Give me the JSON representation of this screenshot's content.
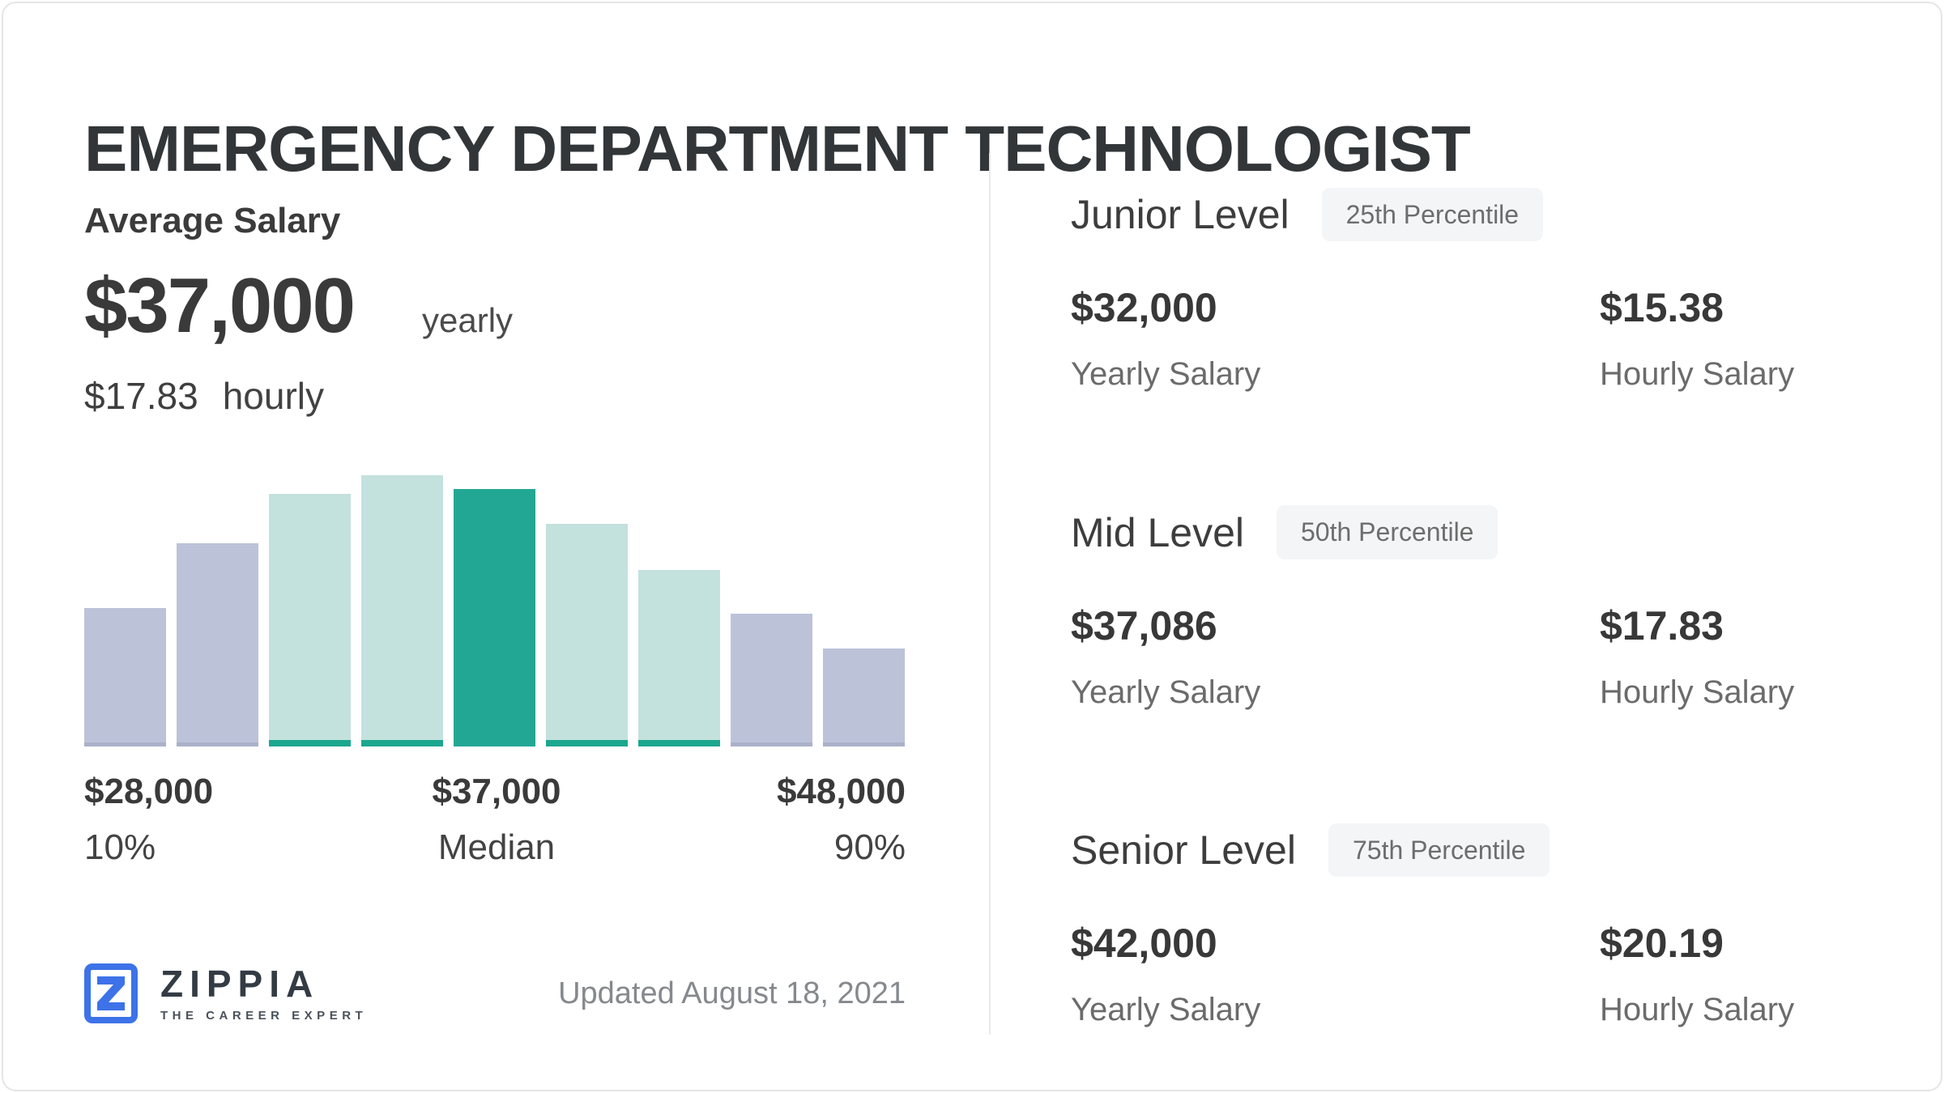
{
  "page": {
    "title": "EMERGENCY DEPARTMENT TECHNOLOGIST",
    "updated": "Updated August 18, 2021"
  },
  "average": {
    "label": "Average Salary",
    "yearly_value": "$37,000",
    "yearly_unit": "yearly",
    "hourly_value": "$17.83",
    "hourly_unit": "hourly"
  },
  "chart_data": {
    "type": "bar",
    "title": "Salary distribution histogram",
    "x_range": {
      "low_value": "$28,000",
      "low_percentile": "10%",
      "median_value": "$37,000",
      "high_value": "$48,000",
      "high_percentile": "90%"
    },
    "ylabel": "",
    "xlabel": "",
    "grid": false,
    "legend": false,
    "relative_heights_pct": [
      51,
      75,
      93,
      100,
      95,
      82,
      65,
      49,
      36
    ],
    "bar_styles": [
      "gray",
      "gray",
      "teal_light",
      "teal_light",
      "teal",
      "teal_light",
      "teal_light",
      "gray",
      "gray"
    ],
    "colors": {
      "gray": "#bcc2d8",
      "gray_edge": "#aab1c8",
      "teal_light": "#c3e1dd",
      "teal": "#23a795",
      "teal_accent": "#1ca78e"
    },
    "axis_annotations": [
      {
        "value": "$28,000",
        "label": "10%",
        "position": "left"
      },
      {
        "value": "$37,000",
        "label": "Median",
        "position": "median"
      },
      {
        "value": "$48,000",
        "label": "90%",
        "position": "right"
      }
    ]
  },
  "axis": {
    "left_value": "$28,000",
    "left_label": "10%",
    "mid_value": "$37,000",
    "mid_label": "Median",
    "right_value": "$48,000",
    "right_label": "90%"
  },
  "logo": {
    "brand": "ZIPPIA",
    "tagline": "THE CAREER EXPERT",
    "mark_letter": "Z",
    "blue": "#3d72e8"
  },
  "levels": [
    {
      "name": "Junior Level",
      "badge": "25th Percentile",
      "yearly_value": "$32,000",
      "yearly_label": "Yearly Salary",
      "hourly_value": "$15.38",
      "hourly_label": "Hourly Salary"
    },
    {
      "name": "Mid Level",
      "badge": "50th Percentile",
      "yearly_value": "$37,086",
      "yearly_label": "Yearly Salary",
      "hourly_value": "$17.83",
      "hourly_label": "Hourly Salary"
    },
    {
      "name": "Senior Level",
      "badge": "75th Percentile",
      "yearly_value": "$42,000",
      "yearly_label": "Yearly Salary",
      "hourly_value": "$20.19",
      "hourly_label": "Hourly Salary"
    }
  ]
}
